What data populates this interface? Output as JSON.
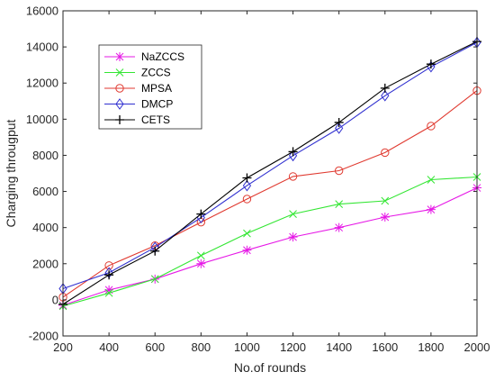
{
  "chart_data": {
    "type": "line",
    "title": "",
    "xlabel": "No.of rounds",
    "ylabel": "Charging througput",
    "x": [
      200,
      400,
      600,
      800,
      1000,
      1200,
      1400,
      1600,
      1800,
      2000
    ],
    "xlim": [
      200,
      2000
    ],
    "ylim": [
      -2000,
      16000
    ],
    "xticks": [
      "200",
      "400",
      "600",
      "800",
      "1000",
      "1200",
      "1400",
      "1600",
      "1800",
      "2000"
    ],
    "yticks": [
      "-2000",
      "0",
      "2000",
      "4000",
      "6000",
      "8000",
      "10000",
      "12000",
      "14000",
      "16000"
    ],
    "grid": false,
    "legend_position": "top-left",
    "series": [
      {
        "name": "NaZCCS",
        "color": "#e619e6",
        "marker": "asterisk",
        "values": [
          -300,
          550,
          1150,
          2000,
          2750,
          3480,
          4000,
          4580,
          5000,
          6200
        ]
      },
      {
        "name": "ZCCS",
        "color": "#33e633",
        "marker": "x",
        "values": [
          -350,
          380,
          1150,
          2450,
          3680,
          4750,
          5300,
          5480,
          6650,
          6800
        ]
      },
      {
        "name": "MPSA",
        "color": "#e03a30",
        "marker": "circle",
        "values": [
          150,
          1900,
          3000,
          4300,
          5580,
          6830,
          7150,
          8150,
          9620,
          11580
        ]
      },
      {
        "name": "DMCP",
        "color": "#3030d0",
        "marker": "diamond",
        "values": [
          620,
          1500,
          2900,
          4550,
          6320,
          7980,
          9500,
          11300,
          12900,
          14250
        ]
      },
      {
        "name": "CETS",
        "color": "#000000",
        "marker": "plus",
        "values": [
          -250,
          1380,
          2700,
          4750,
          6750,
          8200,
          9820,
          11720,
          13050,
          14300
        ]
      }
    ]
  }
}
